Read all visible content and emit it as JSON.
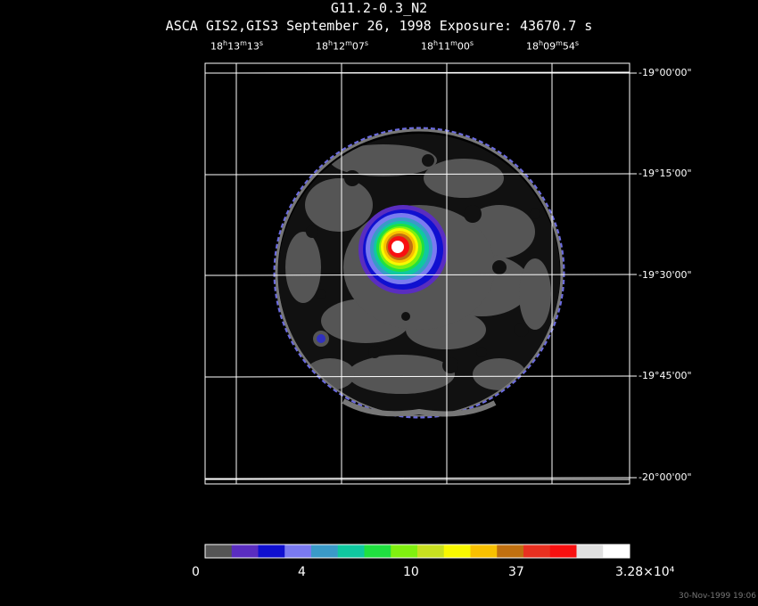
{
  "header": {
    "title": "G11.2-0.3_N2",
    "subtitle": "ASCA GIS2,GIS3 September 26, 1998 Exposure: 43670.7 s"
  },
  "ra_ticks": [
    {
      "h": "18",
      "m": "13",
      "s": "13"
    },
    {
      "h": "18",
      "m": "12",
      "s": "07"
    },
    {
      "h": "18",
      "m": "11",
      "s": "00"
    },
    {
      "h": "18",
      "m": "09",
      "s": "54"
    }
  ],
  "dec_ticks": [
    "-19°00'00\"",
    "-19°15'00\"",
    "-19°30'00\"",
    "-19°45'00\"",
    "-20°00'00\""
  ],
  "colorbar": {
    "labels": [
      "0",
      "4",
      "10",
      "37",
      "3.28×10⁴"
    ],
    "colors": [
      "#555555",
      "#5a2dc0",
      "#1010d0",
      "#7a7af0",
      "#3a9ac8",
      "#10c8a0",
      "#20e040",
      "#80f010",
      "#c8e020",
      "#f8f800",
      "#f8c000",
      "#c07010",
      "#e83020",
      "#f81010",
      "#e0e0e0",
      "#ffffff"
    ]
  },
  "footer": {
    "timestamp": "30-Nov-1999 19:06"
  }
}
